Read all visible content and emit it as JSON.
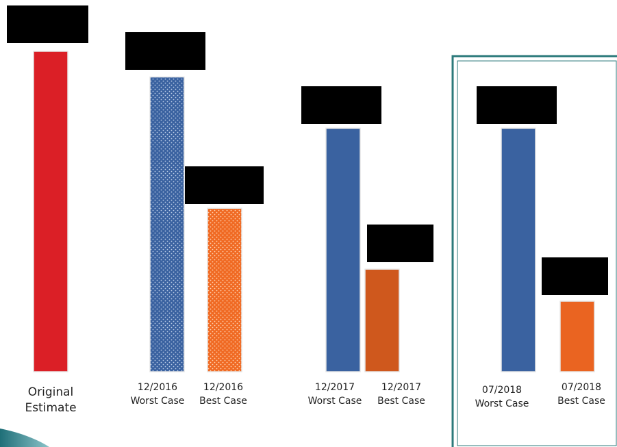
{
  "chart_data": {
    "type": "bar",
    "title": "",
    "xlabel": "",
    "ylabel": "",
    "ylim": [
      0,
      100
    ],
    "grid": false,
    "legend": "none",
    "categories": [
      "Original Estimate",
      "12/2016 Worst Case",
      "12/2016 Best Case",
      "12/2017 Worst Case",
      "12/2017 Best Case",
      "07/2018 Worst Case",
      "07/2018 Best Case"
    ],
    "values": [
      100,
      92,
      51,
      76,
      32,
      76,
      22
    ],
    "bars": [
      {
        "label_lines": [
          "Original",
          "Estimate"
        ],
        "value": 100,
        "color": "#db1f26",
        "pattern": "solid"
      },
      {
        "label_lines": [
          "12/2016",
          "Worst Case"
        ],
        "value": 92,
        "color": "#3a62a0",
        "pattern": "dots"
      },
      {
        "label_lines": [
          "12/2016",
          "Best Case"
        ],
        "value": 51,
        "color": "#f06a23",
        "pattern": "dots"
      },
      {
        "label_lines": [
          "12/2017",
          "Worst Case"
        ],
        "value": 76,
        "color": "#3a62a0",
        "pattern": "solid"
      },
      {
        "label_lines": [
          "12/2017",
          "Best Case"
        ],
        "value": 32,
        "color": "#cf581d",
        "pattern": "solid"
      },
      {
        "label_lines": [
          "07/2018",
          "Worst Case"
        ],
        "value": 76,
        "color": "#3a62a0",
        "pattern": "solid"
      },
      {
        "label_lines": [
          "07/2018",
          "Best Case"
        ],
        "value": 22,
        "color": "#ea6421",
        "pattern": "solid"
      }
    ],
    "data_labels": "redacted",
    "highlight": {
      "categories": [
        "07/2018 Worst Case",
        "07/2018 Best Case"
      ],
      "color": "#2c7a7b"
    }
  }
}
